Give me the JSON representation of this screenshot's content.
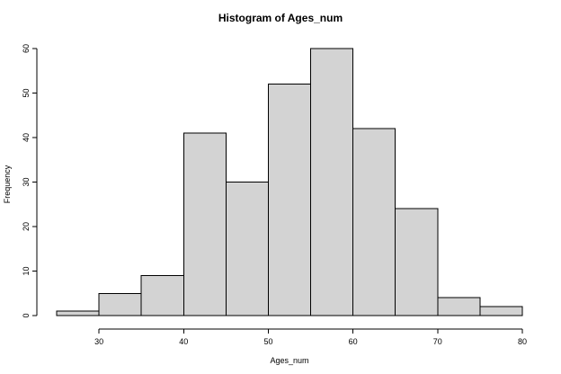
{
  "chart_data": {
    "type": "bar",
    "title": "Histogram of Ages_num",
    "xlabel": "Ages_num",
    "ylabel": "Frequency",
    "bin_edges": [
      25,
      30,
      35,
      40,
      45,
      50,
      55,
      60,
      65,
      70,
      75,
      80
    ],
    "values": [
      1,
      5,
      9,
      41,
      30,
      52,
      60,
      42,
      24,
      4,
      2
    ],
    "xlim": [
      25,
      80
    ],
    "ylim": [
      0,
      60
    ],
    "x_ticks": [
      30,
      40,
      50,
      60,
      70,
      80
    ],
    "y_ticks": [
      0,
      10,
      20,
      30,
      40,
      50,
      60
    ],
    "grid": false,
    "colors": {
      "bar_fill": "#d3d3d3",
      "bar_stroke": "#000000",
      "axis": "#000000"
    }
  }
}
